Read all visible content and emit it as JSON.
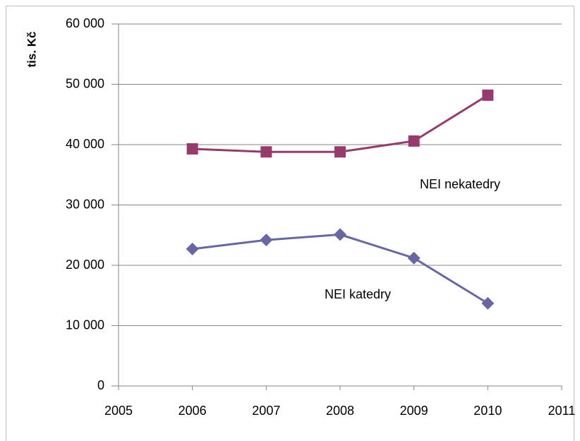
{
  "chart_data": {
    "type": "line",
    "y_label": "tis. Kč",
    "x": [
      2006,
      2007,
      2008,
      2009,
      2010
    ],
    "series": [
      {
        "name": "NEI nekatedry",
        "color": "#983a6c",
        "marker": "square",
        "values": [
          39300,
          38800,
          38800,
          40600,
          48200
        ]
      },
      {
        "name": "NEI katedry",
        "color": "#6767a8",
        "marker": "diamond",
        "values": [
          22700,
          24200,
          25100,
          21200,
          13700
        ]
      }
    ],
    "xlim": [
      2005,
      2011
    ],
    "xticks": [
      2005,
      2006,
      2007,
      2008,
      2009,
      2010,
      2011
    ],
    "ylim": [
      0,
      60000
    ],
    "yticks": [
      0,
      {
        "value": 10000,
        "label": "10 000"
      },
      {
        "value": 20000,
        "label": "20 000"
      },
      {
        "value": 30000,
        "label": "30 000"
      },
      {
        "value": 40000,
        "label": "40 000"
      },
      {
        "value": 50000,
        "label": "50 000"
      },
      {
        "value": 60000,
        "label": "60 000"
      }
    ],
    "grid": true
  }
}
